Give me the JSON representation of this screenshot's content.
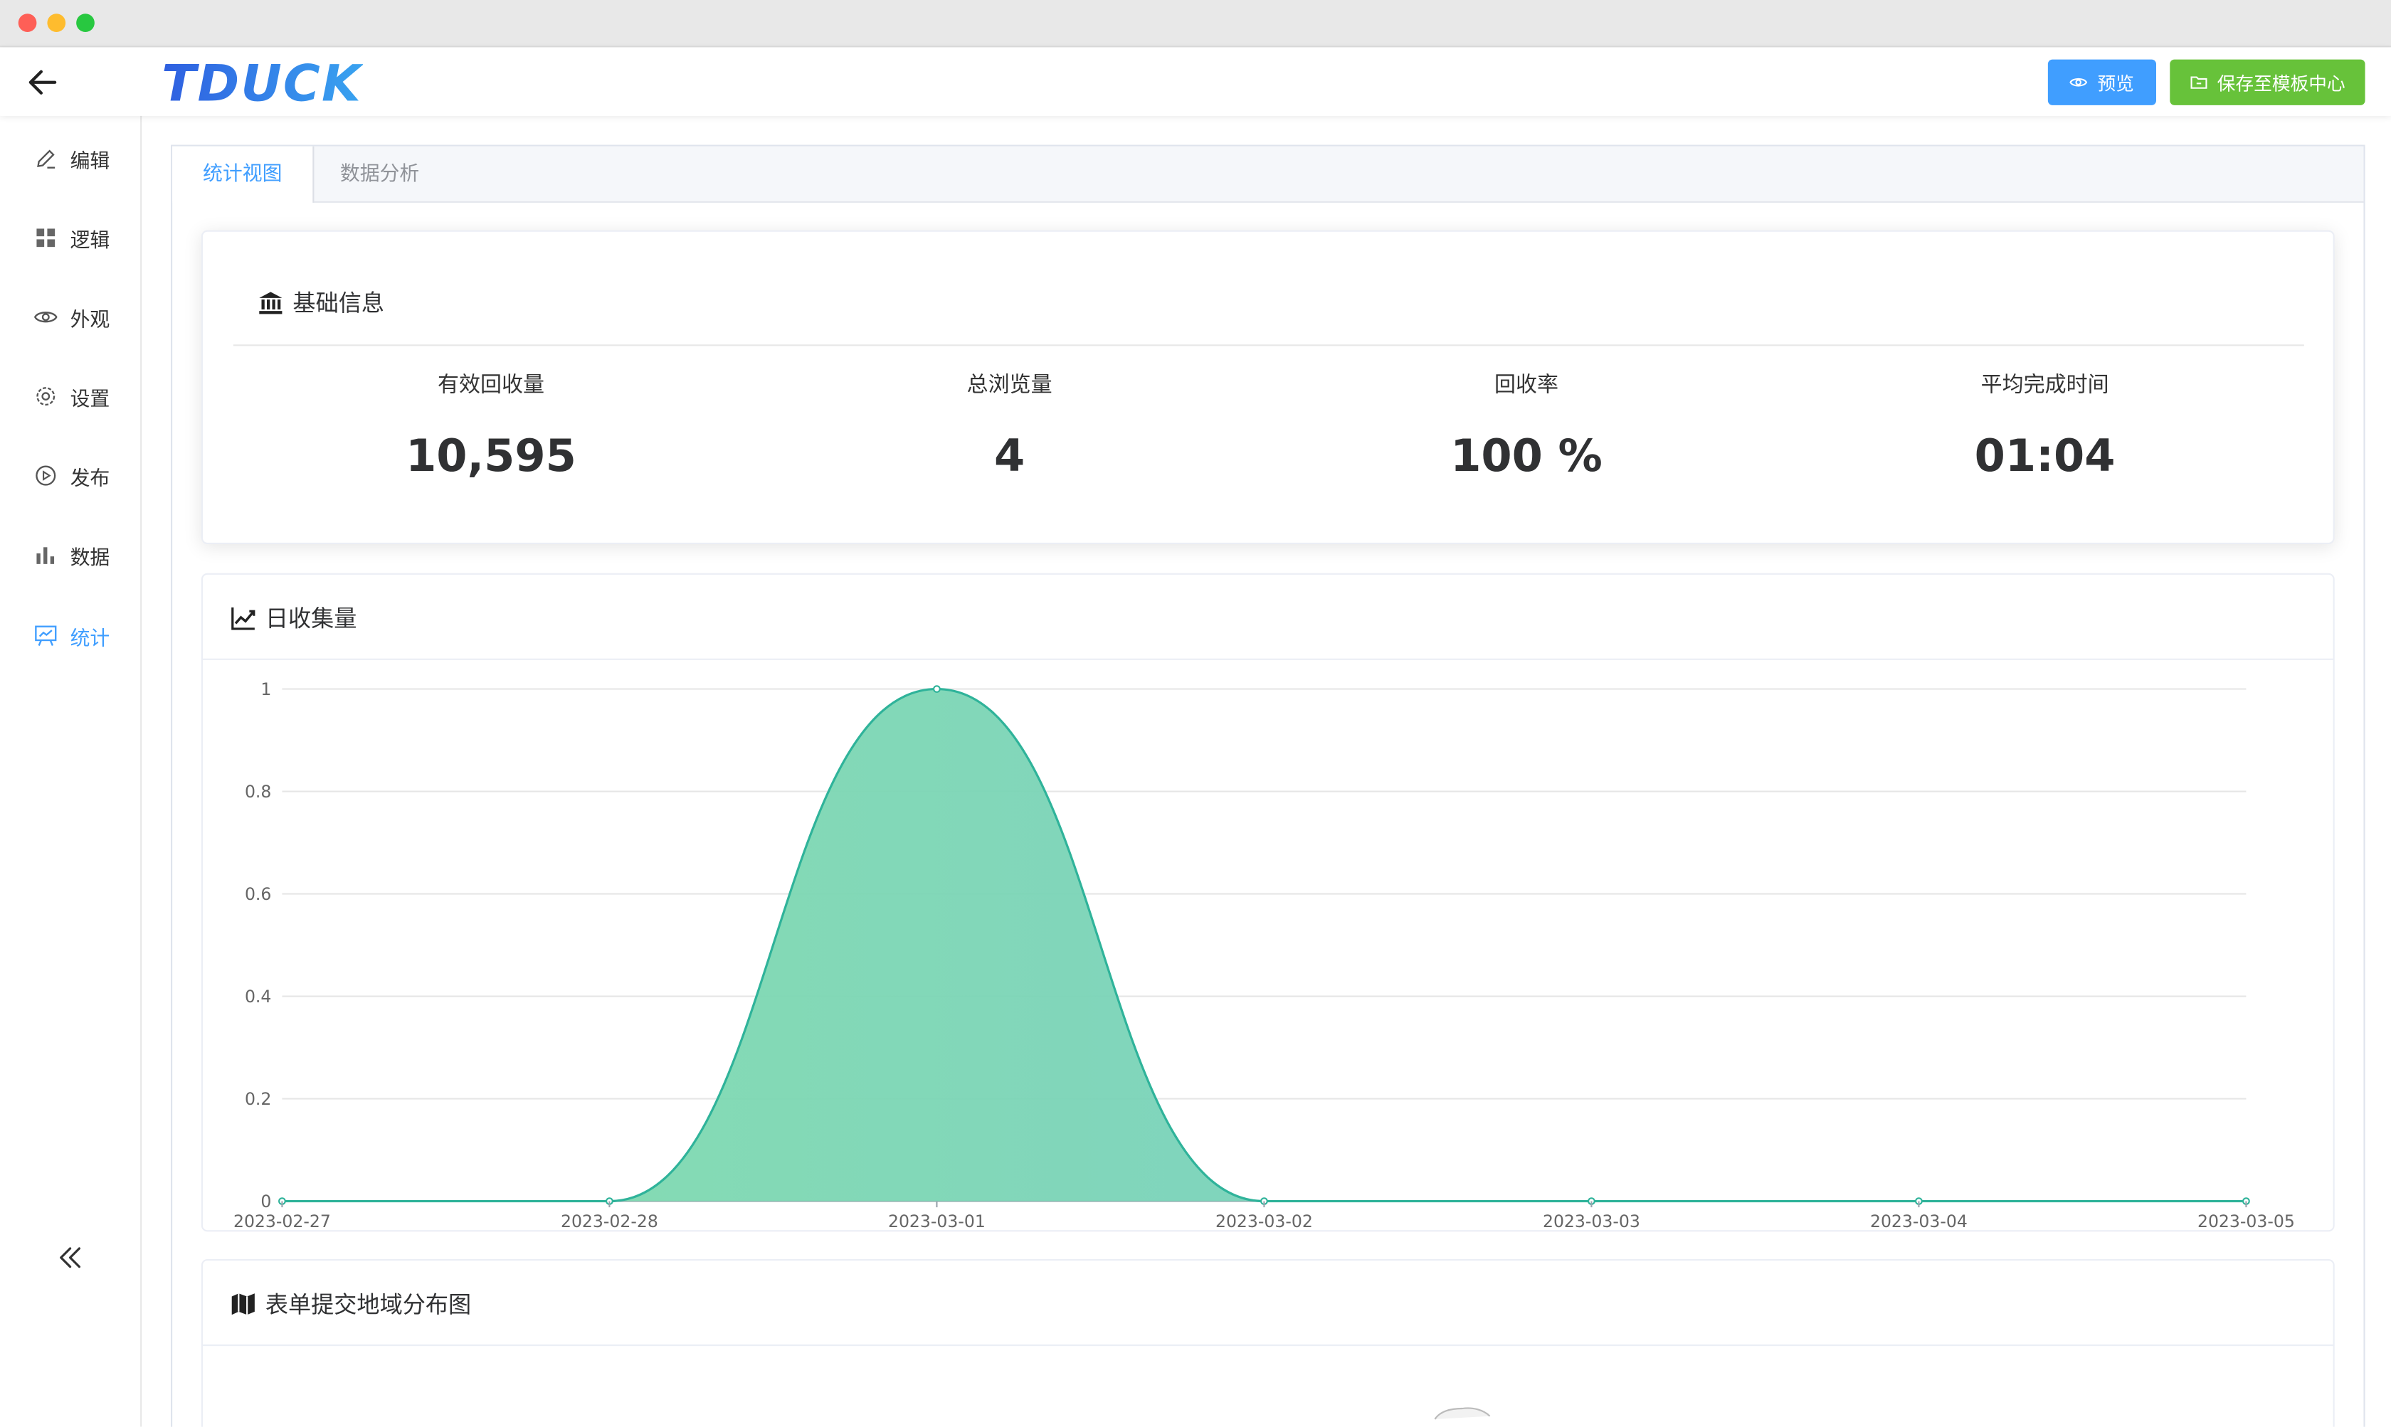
{
  "header": {
    "logo_text": "TDUCK",
    "preview_label": "预览",
    "save_label": "保存至模板中心"
  },
  "sidebar": {
    "items": [
      {
        "label": "编辑",
        "icon": "edit-icon"
      },
      {
        "label": "逻辑",
        "icon": "grid-icon"
      },
      {
        "label": "外观",
        "icon": "eye-icon"
      },
      {
        "label": "设置",
        "icon": "gear-icon"
      },
      {
        "label": "发布",
        "icon": "play-icon"
      },
      {
        "label": "数据",
        "icon": "bar-chart-icon"
      },
      {
        "label": "统计",
        "icon": "presentation-icon",
        "active": true
      }
    ]
  },
  "tabs": [
    {
      "label": "统计视图",
      "active": true
    },
    {
      "label": "数据分析",
      "active": false
    }
  ],
  "basic_info": {
    "title": "基础信息",
    "stats": [
      {
        "label": "有效回收量",
        "value": "10,595"
      },
      {
        "label": "总浏览量",
        "value": "4"
      },
      {
        "label": "回收率",
        "value": "100 %"
      },
      {
        "label": "平均完成时间",
        "value": "01:04"
      }
    ]
  },
  "daily_chart": {
    "title": "日收集量"
  },
  "region_map": {
    "title": "表单提交地域分布图"
  },
  "colors": {
    "primary": "#409eff",
    "success": "#67c23a",
    "series_start": "#7bd8b0",
    "series_end": "#6ec8c8",
    "series_line": "#2fb39a"
  },
  "chart_data": {
    "type": "area",
    "x": [
      "2023-02-27",
      "2023-02-28",
      "2023-03-01",
      "2023-03-02",
      "2023-03-03",
      "2023-03-04",
      "2023-03-05"
    ],
    "series": [
      {
        "values": [
          0,
          0,
          1,
          0,
          0,
          0,
          0
        ]
      }
    ],
    "yticks": [
      "0",
      "0.2",
      "0.4",
      "0.6",
      "0.8",
      "1"
    ],
    "ylim": [
      0,
      1
    ],
    "grid": true,
    "smooth": true
  }
}
